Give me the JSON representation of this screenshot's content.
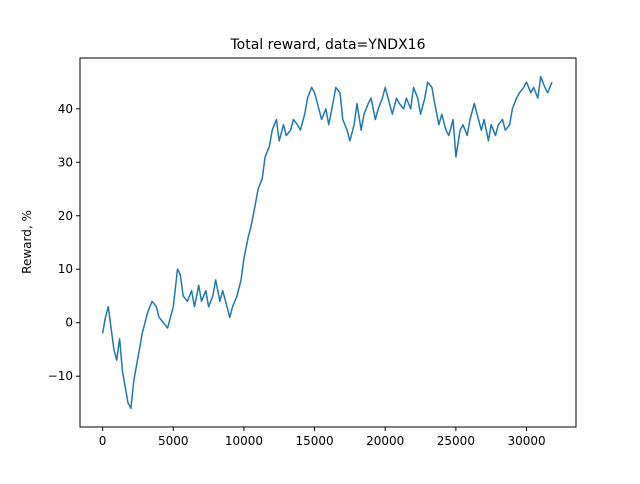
{
  "chart_data": {
    "type": "line",
    "title": "Total reward, data=YNDX16",
    "xlabel": "",
    "ylabel": "Reward, %",
    "xlim": [
      -1600,
      33500
    ],
    "ylim": [
      -19.5,
      49.5
    ],
    "xticks": [
      0,
      5000,
      10000,
      15000,
      20000,
      25000,
      30000
    ],
    "xtick_labels": [
      "0",
      "5000",
      "10000",
      "15000",
      "20000",
      "25000",
      "30000"
    ],
    "yticks": [
      -10,
      0,
      10,
      20,
      30,
      40
    ],
    "ytick_labels": [
      "−10",
      "0",
      "10",
      "20",
      "30",
      "40"
    ],
    "grid": false,
    "legend": "none",
    "series": [
      {
        "name": "",
        "color": "#1f77b4",
        "x": [
          0,
          200,
          400,
          600,
          800,
          1000,
          1200,
          1400,
          1600,
          1800,
          2000,
          2200,
          2400,
          2600,
          2800,
          3000,
          3200,
          3500,
          3800,
          4000,
          4300,
          4600,
          4800,
          5000,
          5300,
          5500,
          5700,
          6000,
          6300,
          6500,
          6800,
          7000,
          7300,
          7500,
          7800,
          8000,
          8300,
          8500,
          8800,
          9000,
          9200,
          9500,
          9800,
          10000,
          10300,
          10500,
          10800,
          11000,
          11300,
          11500,
          11800,
          12000,
          12300,
          12500,
          12800,
          13000,
          13300,
          13500,
          13800,
          14000,
          14300,
          14500,
          14800,
          15000,
          15300,
          15500,
          15800,
          16000,
          16300,
          16500,
          16800,
          17000,
          17300,
          17500,
          17800,
          18000,
          18300,
          18500,
          18800,
          19000,
          19300,
          19500,
          19800,
          20000,
          20300,
          20500,
          20800,
          21000,
          21300,
          21500,
          21800,
          22000,
          22300,
          22500,
          22800,
          23000,
          23300,
          23500,
          23800,
          24000,
          24300,
          24500,
          24800,
          25000,
          25300,
          25500,
          25800,
          26000,
          26300,
          26500,
          26800,
          27000,
          27300,
          27500,
          27800,
          28000,
          28300,
          28500,
          28800,
          29000,
          29300,
          29500,
          29800,
          30000,
          30300,
          30500,
          30800,
          31000,
          31300,
          31500,
          31800
        ],
        "values": [
          -2,
          1,
          3,
          -1,
          -5,
          -7,
          -3,
          -9,
          -12,
          -15,
          -16,
          -11,
          -8,
          -5,
          -2,
          0,
          2,
          4,
          3,
          1,
          0,
          -1,
          1,
          3,
          10,
          9,
          5,
          4,
          6,
          3,
          7,
          4,
          6,
          3,
          5,
          8,
          4,
          6,
          3,
          1,
          3,
          5,
          8,
          12,
          16,
          18,
          22,
          25,
          27,
          31,
          33,
          36,
          38,
          34,
          37,
          35,
          36,
          38,
          37,
          36,
          39,
          42,
          44,
          43,
          40,
          38,
          40,
          37,
          41,
          44,
          43,
          38,
          36,
          34,
          37,
          41,
          36,
          39,
          41,
          42,
          38,
          40,
          42,
          44,
          41,
          39,
          42,
          41,
          40,
          42,
          40,
          44,
          42,
          39,
          42,
          45,
          44,
          41,
          37,
          39,
          36,
          35,
          38,
          31,
          36,
          37,
          35,
          38,
          41,
          39,
          36,
          38,
          34,
          37,
          35,
          37,
          38,
          36,
          37,
          40,
          42,
          43,
          44,
          45,
          43,
          44,
          42,
          46,
          44,
          43,
          45
        ]
      }
    ]
  }
}
